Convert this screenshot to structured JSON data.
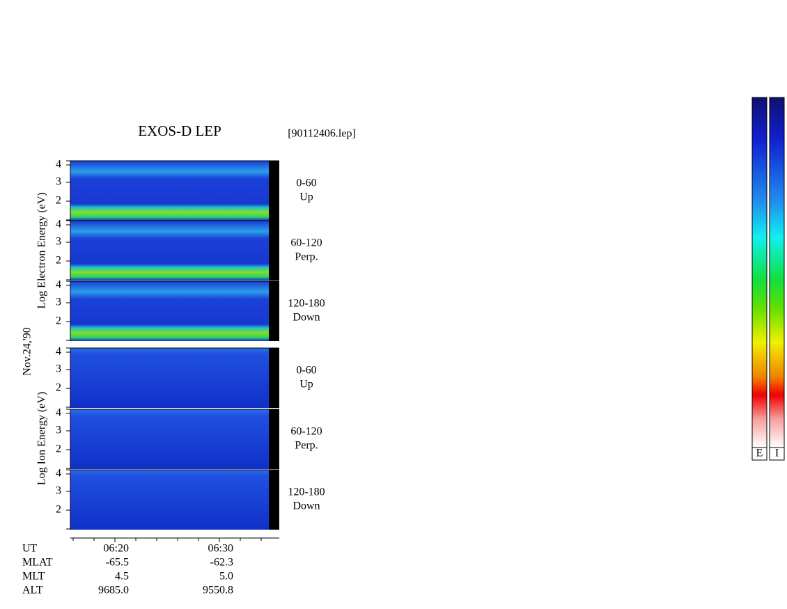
{
  "header": {
    "title": "EXOS-D LEP",
    "file": "[90112406.lep]"
  },
  "side_labels": {
    "electron": "Log Electron Energy (eV)",
    "ion": "Log Ion Energy (eV)",
    "date": "Nov.24,'90"
  },
  "panels": [
    {
      "ticks": [
        "4",
        "3",
        "2"
      ],
      "pitch": "0-60",
      "direction": "Up"
    },
    {
      "ticks": [
        "4",
        "3",
        "2"
      ],
      "pitch": "60-120",
      "direction": "Perp."
    },
    {
      "ticks": [
        "4",
        "3",
        "2"
      ],
      "pitch": "120-180",
      "direction": "Down"
    },
    {
      "ticks": [
        "4",
        "3",
        "2"
      ],
      "pitch": "0-60",
      "direction": "Up"
    },
    {
      "ticks": [
        "4",
        "3",
        "2"
      ],
      "pitch": "60-120",
      "direction": "Perp."
    },
    {
      "ticks": [
        "4",
        "3",
        "2"
      ],
      "pitch": "120-180",
      "direction": "Down"
    }
  ],
  "time_axis": {
    "rows": [
      {
        "label": "UT",
        "values": [
          "06:20",
          "06:30"
        ]
      },
      {
        "label": "MLAT",
        "values": [
          "-65.5",
          "-62.3"
        ]
      },
      {
        "label": "MLT",
        "values": [
          "4.5",
          "5.0"
        ]
      },
      {
        "label": "ALT",
        "values": [
          "9685.0",
          "9550.8"
        ]
      }
    ]
  },
  "colorbars": [
    "E",
    "I"
  ]
}
